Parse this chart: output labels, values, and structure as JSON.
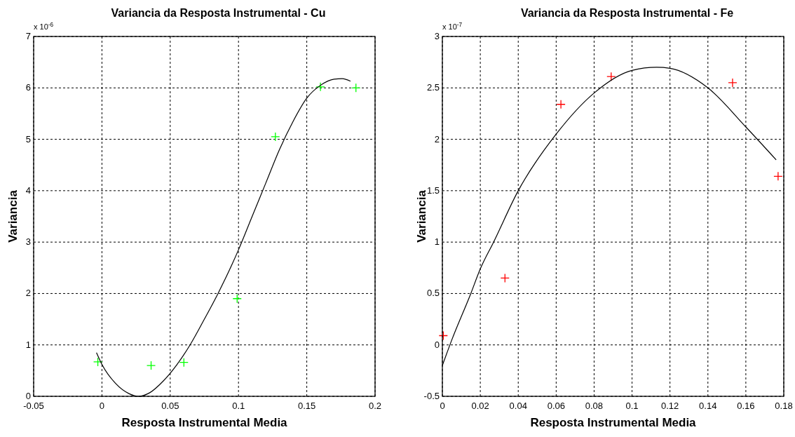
{
  "chart_data": [
    {
      "type": "scatter",
      "title": "Variancia da Resposta Instrumental - Cu",
      "xlabel": "Resposta Instrumental Media",
      "ylabel": "Variancia",
      "annotations": [
        "x 10$^{-6}$"
      ],
      "xlim": [
        -0.05,
        0.2
      ],
      "xticks": [
        -0.05,
        0,
        0.05,
        0.1,
        0.15,
        0.2
      ],
      "ylim": [
        0,
        7
      ],
      "yticks": [
        0,
        1,
        2,
        3,
        4,
        5,
        6,
        7
      ],
      "grid": true,
      "series": [
        {
          "color": "#00ff00",
          "marker": "cross",
          "x": [
            -0.003,
            0.036,
            0.06,
            0.099,
            0.127,
            0.16,
            0.186
          ],
          "values": [
            0.67,
            0.6,
            0.66,
            1.9,
            5.05,
            6.02,
            6.0
          ]
        },
        {
          "type": "line",
          "color": "#000000",
          "marker": "none",
          "line_style": "solid",
          "x": [
            -0.004,
            0,
            0.01,
            0.02,
            0.027,
            0.035,
            0.045,
            0.055,
            0.065,
            0.075,
            0.085,
            0.095,
            0.1,
            0.11,
            0.12,
            0.13,
            0.14,
            0.15,
            0.16,
            0.17,
            0.176,
            0.182
          ],
          "values": [
            0.85,
            0.62,
            0.25,
            0.05,
            0,
            0.07,
            0.3,
            0.62,
            1.02,
            1.5,
            2.0,
            2.55,
            2.85,
            3.5,
            4.15,
            4.8,
            5.35,
            5.8,
            6.05,
            6.17,
            6.18,
            6.13
          ]
        }
      ]
    },
    {
      "type": "scatter",
      "title": "Variancia da Resposta Instrumental - Fe",
      "xlabel": "Resposta Instrumental Media",
      "ylabel": "Variancia",
      "annotations": [
        "x 10$^{-7}$"
      ],
      "xlim": [
        0,
        0.18
      ],
      "xticks": [
        0,
        0.02,
        0.04,
        0.06,
        0.08,
        0.1,
        0.12,
        0.14,
        0.16,
        0.18
      ],
      "ylim": [
        -0.5,
        3
      ],
      "yticks": [
        -0.5,
        0,
        0.5,
        1,
        1.5,
        2,
        2.5,
        3
      ],
      "grid": true,
      "series": [
        {
          "color": "#ff0000",
          "marker": "cross",
          "x": [
            0.0005,
            0.033,
            0.0625,
            0.089,
            0.153,
            0.177
          ],
          "values": [
            0.09,
            0.65,
            2.34,
            2.61,
            2.55,
            1.64
          ]
        },
        {
          "type": "line",
          "color": "#000000",
          "marker": "none",
          "line_style": "solid",
          "x": [
            0,
            0.005,
            0.015,
            0.02,
            0.027,
            0.04,
            0.06,
            0.08,
            0.1,
            0.113,
            0.12,
            0.14,
            0.16,
            0.176
          ],
          "values": [
            -0.2,
            0.05,
            0.5,
            0.74,
            1.0,
            1.5,
            2.05,
            2.45,
            2.67,
            2.7,
            2.69,
            2.5,
            2.12,
            1.8
          ]
        }
      ]
    }
  ]
}
